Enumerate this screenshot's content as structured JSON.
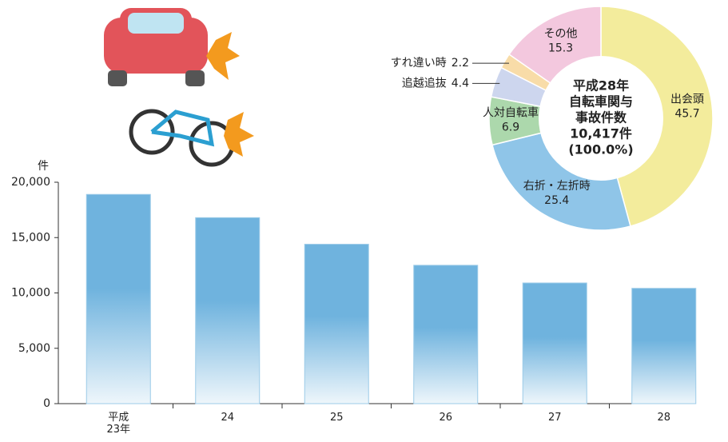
{
  "chart_data": [
    {
      "type": "bar",
      "y_unit": "件",
      "categories": [
        "平成\n23年",
        "24",
        "25",
        "26",
        "27",
        "28"
      ],
      "values": [
        18900,
        16800,
        14400,
        12500,
        10900,
        10417
      ],
      "color": "#6fb3de",
      "ylim": [
        0,
        20000
      ],
      "yticks": [
        0,
        {
          "value": 5000,
          "label": "5,000"
        },
        {
          "value": 10000,
          "label": "10,000"
        },
        {
          "value": 15000,
          "label": "15,000"
        },
        {
          "value": 20000,
          "label": "20,000"
        }
      ]
    },
    {
      "type": "pie",
      "center_label": [
        "平成28年",
        "自転車関与",
        "事故件数",
        "10,417件",
        "(100.0%)"
      ],
      "categories": [
        "出会頭",
        "右折・左折時",
        "人対自転車",
        "追越追抜",
        "すれ違い時",
        "その他"
      ],
      "values": [
        45.7,
        25.4,
        6.9,
        4.4,
        2.2,
        15.3
      ],
      "colors": [
        "#f3ec9c",
        "#8fc5e8",
        "#acd8ac",
        "#cdd6ee",
        "#f8dca8",
        "#f3c8de"
      ]
    }
  ]
}
